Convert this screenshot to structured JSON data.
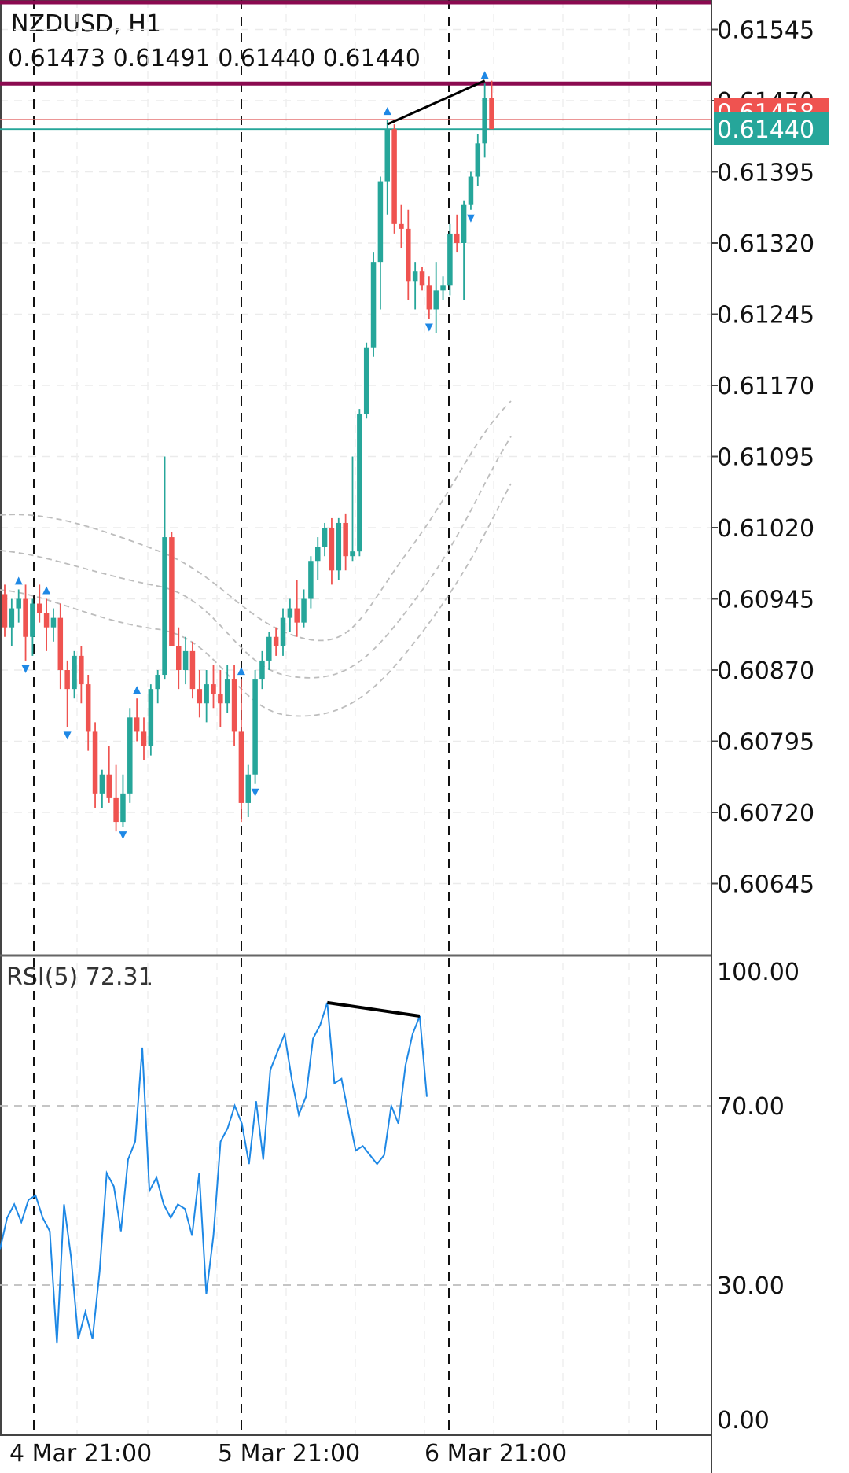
{
  "symbol_title": "NZDUSD, H1",
  "ohlc_readout": "0.61473 0.61491 0.61440 0.61440",
  "rsi_title": "RSI(5) 72.31",
  "colors": {
    "bull": "#26a69a",
    "bear": "#ef5350",
    "resistance_line": "#8b0a50",
    "bid_line": "#e57373",
    "ask_line": "#26a69a",
    "rsi_line": "#1e88e5",
    "divergence": "#000000",
    "fractal_arrow": "#1e88e5",
    "envelope": "#bdbdbd"
  },
  "price_tag_hidden": "0.61458",
  "price_tag_current": "0.61440",
  "chart_data": [
    {
      "type": "candlestick",
      "title": "NZDUSD, H1",
      "ylim": [
        0.6058,
        0.616
      ],
      "y_ticks": [
        "0.61545",
        "0.61470",
        "0.61395",
        "0.61320",
        "0.61245",
        "0.61170",
        "0.61095",
        "0.61020",
        "0.60945",
        "0.60870",
        "0.60795",
        "0.60720",
        "0.60645"
      ],
      "x_ticks": [
        "4 Mar 21:00",
        "5 Mar 21:00",
        "6 Mar 21:00"
      ],
      "grid": true,
      "horizontal_lines": [
        {
          "name": "resistance-top",
          "value": 0.616
        },
        {
          "name": "resistance",
          "value": 0.61488
        },
        {
          "name": "bid",
          "value": 0.6145
        },
        {
          "name": "ask",
          "value": 0.6144
        }
      ],
      "candles": [
        [
          0.6095,
          0.6096,
          0.60905,
          0.60915
        ],
        [
          0.60915,
          0.60945,
          0.60895,
          0.60935
        ],
        [
          0.60935,
          0.60955,
          0.6092,
          0.60945
        ],
        [
          0.60945,
          0.6096,
          0.6088,
          0.60905
        ],
        [
          0.60905,
          0.60945,
          0.60885,
          0.6094
        ],
        [
          0.6094,
          0.6096,
          0.6092,
          0.6093
        ],
        [
          0.6093,
          0.60945,
          0.6089,
          0.60915
        ],
        [
          0.60915,
          0.60935,
          0.609,
          0.60925
        ],
        [
          0.60925,
          0.6094,
          0.6085,
          0.6087
        ],
        [
          0.6087,
          0.6088,
          0.6081,
          0.6085
        ],
        [
          0.6085,
          0.6089,
          0.6084,
          0.60885
        ],
        [
          0.60885,
          0.60895,
          0.60835,
          0.60855
        ],
        [
          0.60855,
          0.60865,
          0.60785,
          0.60805
        ],
        [
          0.60805,
          0.60815,
          0.60725,
          0.6074
        ],
        [
          0.6074,
          0.60765,
          0.60725,
          0.6076
        ],
        [
          0.6076,
          0.6079,
          0.6073,
          0.60735
        ],
        [
          0.60735,
          0.6077,
          0.607,
          0.6071
        ],
        [
          0.6071,
          0.6076,
          0.60705,
          0.6074
        ],
        [
          0.6074,
          0.6083,
          0.6073,
          0.6082
        ],
        [
          0.6082,
          0.6084,
          0.60795,
          0.60805
        ],
        [
          0.60805,
          0.6082,
          0.60775,
          0.6079
        ],
        [
          0.6079,
          0.60855,
          0.6078,
          0.6085
        ],
        [
          0.6085,
          0.6087,
          0.60835,
          0.60865
        ],
        [
          0.60865,
          0.61095,
          0.6086,
          0.6101
        ],
        [
          0.6101,
          0.61015,
          0.609,
          0.60895
        ],
        [
          0.60895,
          0.60915,
          0.6085,
          0.6087
        ],
        [
          0.6087,
          0.60905,
          0.60855,
          0.6089
        ],
        [
          0.6089,
          0.609,
          0.6084,
          0.6085
        ],
        [
          0.6085,
          0.6087,
          0.6082,
          0.60835
        ],
        [
          0.60835,
          0.6087,
          0.60815,
          0.60855
        ],
        [
          0.60855,
          0.60875,
          0.6083,
          0.60845
        ],
        [
          0.60845,
          0.6087,
          0.6081,
          0.60835
        ],
        [
          0.60835,
          0.60875,
          0.60825,
          0.6086
        ],
        [
          0.6086,
          0.60875,
          0.6079,
          0.60805
        ],
        [
          0.60805,
          0.6086,
          0.6071,
          0.6073
        ],
        [
          0.6073,
          0.6077,
          0.60715,
          0.6076
        ],
        [
          0.6076,
          0.6087,
          0.6075,
          0.6086
        ],
        [
          0.6086,
          0.6089,
          0.6085,
          0.6088
        ],
        [
          0.6088,
          0.6091,
          0.6087,
          0.60905
        ],
        [
          0.60905,
          0.60915,
          0.60885,
          0.60895
        ],
        [
          0.60895,
          0.60935,
          0.60885,
          0.60925
        ],
        [
          0.60925,
          0.60945,
          0.6091,
          0.60935
        ],
        [
          0.60935,
          0.60965,
          0.60905,
          0.6092
        ],
        [
          0.6092,
          0.60955,
          0.60915,
          0.60945
        ],
        [
          0.60945,
          0.6099,
          0.60935,
          0.60985
        ],
        [
          0.60985,
          0.6101,
          0.60965,
          0.61
        ],
        [
          0.61,
          0.61025,
          0.6099,
          0.6102
        ],
        [
          0.6102,
          0.6103,
          0.6096,
          0.60975
        ],
        [
          0.60975,
          0.6103,
          0.60965,
          0.61025
        ],
        [
          0.61025,
          0.61035,
          0.60975,
          0.6099
        ],
        [
          0.6099,
          0.61095,
          0.60985,
          0.60995
        ],
        [
          0.60995,
          0.61145,
          0.6099,
          0.6114
        ],
        [
          0.6114,
          0.61215,
          0.61135,
          0.6121
        ],
        [
          0.6121,
          0.6131,
          0.612,
          0.613
        ],
        [
          0.613,
          0.6139,
          0.6125,
          0.61385
        ],
        [
          0.61385,
          0.6145,
          0.6135,
          0.6144
        ],
        [
          0.6144,
          0.61445,
          0.6133,
          0.6134
        ],
        [
          0.6134,
          0.6136,
          0.61315,
          0.61335
        ],
        [
          0.61335,
          0.61355,
          0.6126,
          0.6128
        ],
        [
          0.6128,
          0.613,
          0.6125,
          0.6129
        ],
        [
          0.6129,
          0.61295,
          0.6127,
          0.61275
        ],
        [
          0.61275,
          0.61285,
          0.6124,
          0.6125
        ],
        [
          0.6125,
          0.613,
          0.61225,
          0.6127
        ],
        [
          0.6127,
          0.61285,
          0.6126,
          0.61275
        ],
        [
          0.61275,
          0.6134,
          0.61265,
          0.6133
        ],
        [
          0.6133,
          0.6135,
          0.6131,
          0.6132
        ],
        [
          0.6132,
          0.61365,
          0.6126,
          0.6136
        ],
        [
          0.6136,
          0.61395,
          0.61355,
          0.6139
        ],
        [
          0.6139,
          0.61435,
          0.6138,
          0.61425
        ],
        [
          0.61425,
          0.61488,
          0.6141,
          0.61473
        ],
        [
          0.61473,
          0.61491,
          0.6144,
          0.6144
        ]
      ],
      "fractals_up_at": [
        2,
        6,
        19,
        34,
        55,
        69
      ],
      "fractals_down_at": [
        3,
        9,
        17,
        36,
        61,
        67
      ],
      "divergence_line": {
        "from": [
          55,
          0.61445
        ],
        "to": [
          69,
          0.61491
        ]
      }
    },
    {
      "type": "line",
      "title": "RSI(5) 72.31",
      "ylim": [
        0,
        100
      ],
      "y_ticks": [
        "100.00",
        "70.00",
        "30.00",
        "0.00"
      ],
      "levels": [
        70,
        30
      ],
      "values": [
        38,
        45,
        48,
        44,
        49,
        50,
        45,
        42,
        17,
        48,
        36,
        18,
        24,
        18,
        33,
        55,
        52,
        42,
        58,
        62,
        83,
        51,
        54,
        48,
        45,
        48,
        47,
        41,
        55,
        28,
        41,
        62,
        65,
        70,
        66,
        57,
        71,
        58,
        78,
        82,
        86,
        76,
        68,
        72,
        85,
        88,
        93,
        75,
        76,
        68,
        60,
        61,
        59,
        57,
        59,
        70,
        66,
        79,
        86,
        90,
        72
      ],
      "divergence_line": {
        "from": [
          46,
          93
        ],
        "to": [
          59,
          90
        ]
      }
    }
  ]
}
